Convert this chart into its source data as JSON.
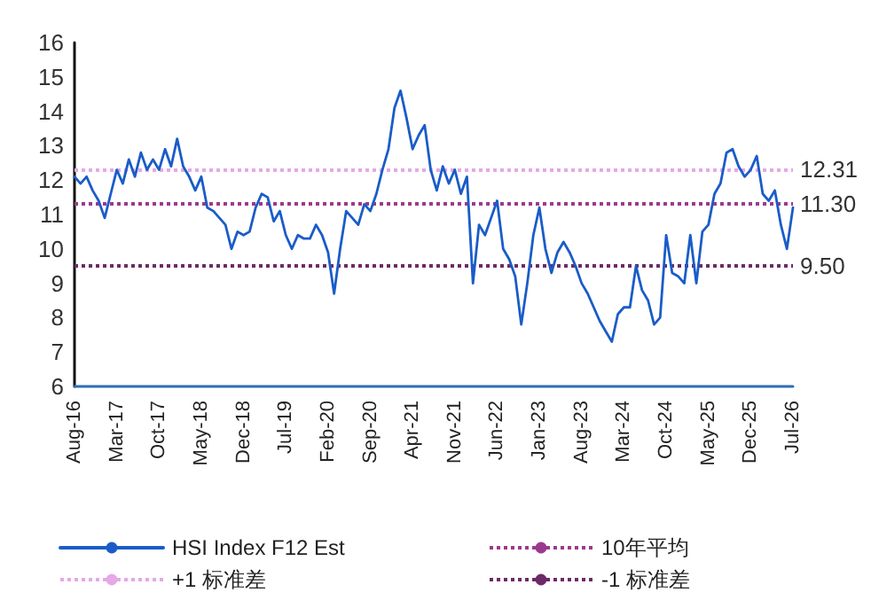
{
  "chart_data": {
    "type": "line",
    "categories": [
      "Aug-16",
      null,
      null,
      null,
      null,
      null,
      null,
      "Mar-17",
      null,
      null,
      null,
      null,
      null,
      null,
      "Oct-17",
      null,
      null,
      null,
      null,
      null,
      null,
      "May-18",
      null,
      null,
      null,
      null,
      null,
      null,
      "Dec-18",
      null,
      null,
      null,
      null,
      null,
      null,
      "Jul-19",
      null,
      null,
      null,
      null,
      null,
      null,
      "Feb-20",
      null,
      null,
      null,
      null,
      null,
      null,
      "Sep-20",
      null,
      null,
      null,
      null,
      null,
      null,
      "Apr-21",
      null,
      null,
      null,
      null,
      null,
      null,
      "Nov-21",
      null,
      null,
      null,
      null,
      null,
      null,
      "Jun-22",
      null,
      null,
      null,
      null,
      null,
      null,
      "Jan-23",
      null,
      null,
      null,
      null,
      null,
      null,
      "Aug-23",
      null,
      null,
      null,
      null,
      null,
      null,
      "Mar-24",
      null,
      null,
      null,
      null,
      null,
      null,
      "Oct-24",
      null,
      null,
      null,
      null,
      null,
      null,
      "May-25",
      null,
      null,
      null,
      null,
      null,
      null,
      "Dec-25",
      null,
      null,
      null,
      null,
      null,
      null,
      "Jul-26"
    ],
    "series": [
      {
        "name": "HSI Index F12 Est",
        "color": "#1a5cc8",
        "values": [
          12.1,
          11.9,
          12.1,
          11.7,
          11.4,
          10.9,
          11.6,
          12.3,
          11.9,
          12.6,
          12.1,
          12.8,
          12.3,
          12.6,
          12.3,
          12.9,
          12.4,
          13.2,
          12.4,
          12.1,
          11.7,
          12.1,
          11.2,
          11.1,
          10.9,
          10.7,
          10.0,
          10.5,
          10.4,
          10.5,
          11.2,
          11.6,
          11.5,
          10.8,
          11.1,
          10.4,
          10.0,
          10.4,
          10.3,
          10.3,
          10.7,
          10.4,
          9.9,
          8.7,
          10.0,
          11.1,
          10.9,
          10.7,
          11.3,
          11.1,
          11.6,
          12.3,
          12.9,
          14.1,
          14.6,
          13.8,
          12.9,
          13.3,
          13.6,
          12.3,
          11.7,
          12.4,
          11.9,
          12.3,
          11.6,
          12.1,
          9.0,
          10.7,
          10.4,
          10.9,
          11.4,
          10.0,
          9.7,
          9.2,
          7.8,
          9.0,
          10.4,
          11.2,
          10.0,
          9.3,
          9.9,
          10.2,
          9.9,
          9.5,
          9.0,
          8.7,
          8.3,
          7.9,
          7.6,
          7.3,
          8.1,
          8.3,
          8.3,
          9.5,
          8.8,
          8.5,
          7.8,
          8.0,
          10.4,
          9.3,
          9.2,
          9.0,
          10.4,
          9.0,
          10.5,
          10.7,
          11.6,
          11.9,
          12.8,
          12.9,
          12.4,
          12.1,
          12.3,
          12.7,
          11.6,
          11.4,
          11.7,
          10.7,
          10.0,
          11.2
        ]
      }
    ],
    "ref_lines": [
      {
        "axis": "y",
        "value": 12.31,
        "label": "+1 标准差",
        "color": "#e6a8e6",
        "line_style": "dotted"
      },
      {
        "axis": "y",
        "value": 11.3,
        "label": "10年平均",
        "color": "#9b3a8c",
        "line_style": "dotted"
      },
      {
        "axis": "y",
        "value": 9.5,
        "label": "-1 标准差",
        "color": "#6e2a66",
        "line_style": "dotted"
      }
    ],
    "annotations": [
      "12.31",
      "11.30",
      "9.50"
    ],
    "ylim": [
      6,
      16
    ],
    "yticks": [
      6,
      7,
      8,
      9,
      10,
      11,
      12,
      13,
      14,
      15,
      16
    ],
    "grid": false,
    "legend": "bottom",
    "marker": "none",
    "line_style": "solid"
  }
}
